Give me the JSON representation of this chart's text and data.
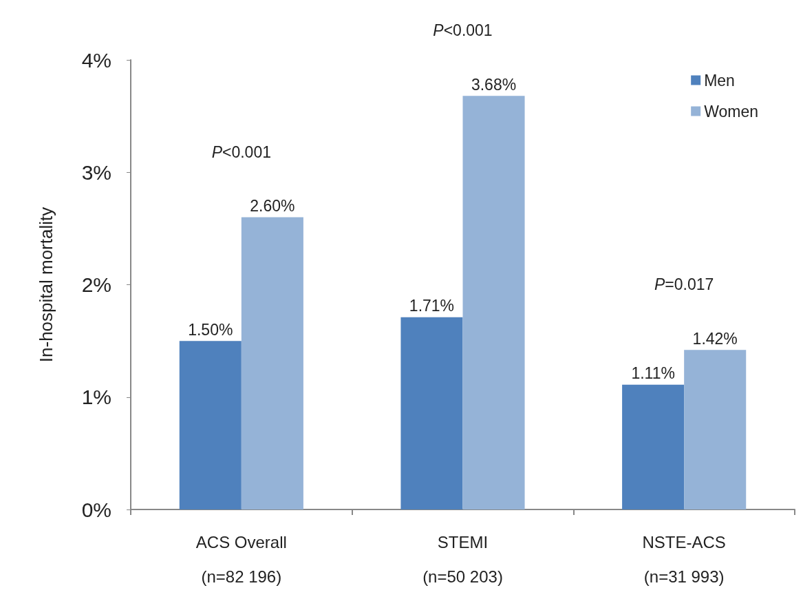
{
  "chart_data": {
    "type": "bar",
    "ylabel": "In-hospital mortality",
    "categories": [
      "ACS Overall\n(n=82 196)",
      "STEMI\n(n=50 203)",
      "NSTE-ACS\n(n=31 993)"
    ],
    "series": [
      {
        "name": "Men",
        "color": "#4f81bd",
        "values": [
          1.5,
          1.71,
          1.11
        ],
        "value_labels": [
          "1.50%",
          "1.71%",
          "1.11%"
        ]
      },
      {
        "name": "Women",
        "color": "#95b3d7",
        "values": [
          2.6,
          3.68,
          1.42
        ],
        "value_labels": [
          "2.60%",
          "3.68%",
          "1.42%"
        ]
      }
    ],
    "ylim": [
      0,
      4
    ],
    "yticks": [
      {
        "value": 0,
        "label": "0%"
      },
      {
        "value": 1,
        "label": "1%"
      },
      {
        "value": 2,
        "label": "2%"
      },
      {
        "value": 3,
        "label": "3%"
      },
      {
        "value": 4,
        "label": "4%"
      }
    ],
    "annotations": [
      "P<0.001",
      "P<0.001",
      "P=0.017"
    ],
    "grid": false,
    "legend": "top right"
  }
}
